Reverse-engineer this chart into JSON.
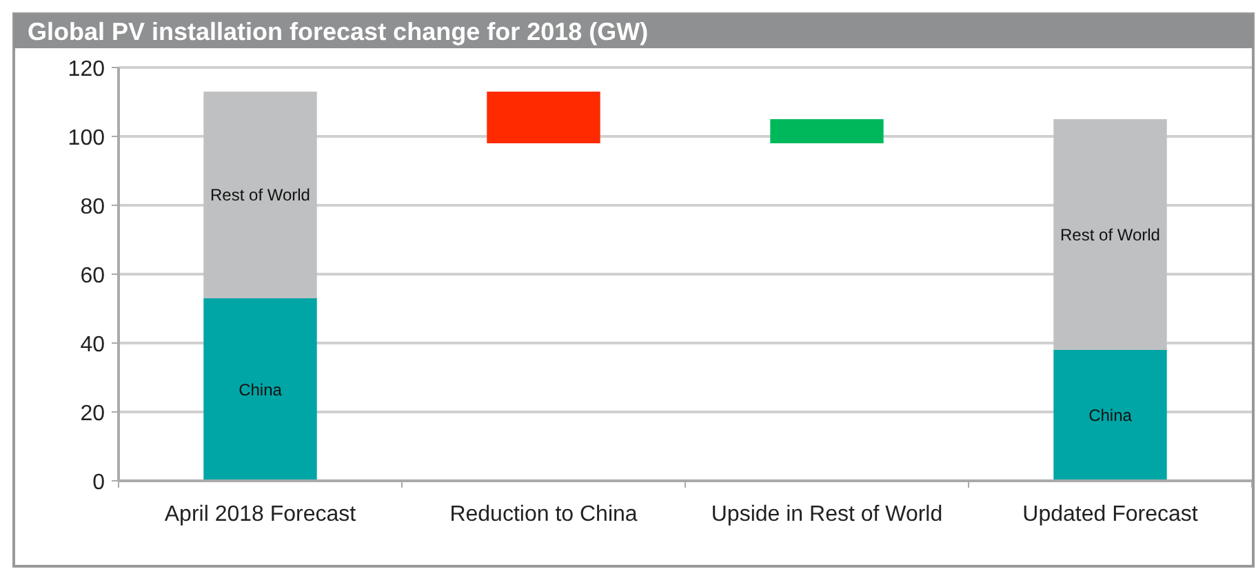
{
  "chart_data": {
    "type": "bar",
    "title": "Global PV installation forecast change for 2018 (GW)",
    "categories": [
      "April 2018 Forecast",
      "Reduction to China",
      "Upside in Rest of World",
      "Updated Forecast"
    ],
    "stacked": true,
    "ylim": [
      0,
      120
    ],
    "yticks": [
      0,
      20,
      40,
      60,
      80,
      100,
      120
    ],
    "grid": "y",
    "series": [
      {
        "name": "China",
        "color": "#00a5a5",
        "values": [
          53,
          null,
          null,
          38
        ]
      },
      {
        "name": "Rest of World",
        "color": "#bfc0c2",
        "values": [
          60,
          null,
          null,
          67
        ]
      },
      {
        "colors": [
          null,
          "#ff2a00",
          "#00b85c",
          null
        ],
        "values": [
          null,
          15,
          7,
          null
        ],
        "base": [
          null,
          98,
          98,
          null
        ]
      }
    ]
  }
}
